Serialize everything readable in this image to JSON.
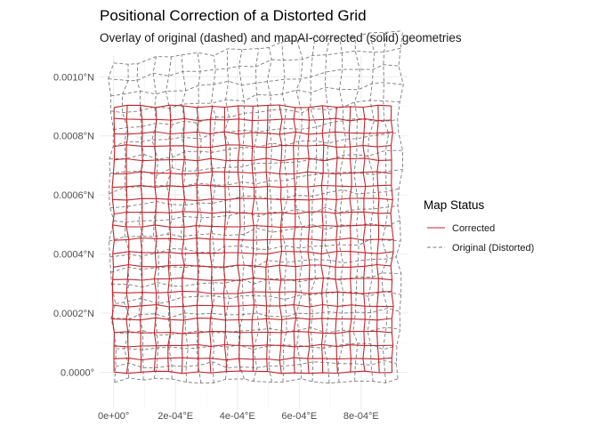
{
  "chart_data": {
    "type": "line",
    "title": "Positional Correction of a Distorted Grid",
    "subtitle": "Overlay of original (dashed) and mapAI-corrected (solid) geometries",
    "x_ticks": [
      {
        "value": 0,
        "label": "0e+00°"
      },
      {
        "value": 0.0002,
        "label": "2e-04°E"
      },
      {
        "value": 0.0004,
        "label": "4e-04°E"
      },
      {
        "value": 0.0006,
        "label": "6e-04°E"
      },
      {
        "value": 0.0008,
        "label": "8e-04°E"
      }
    ],
    "y_ticks": [
      {
        "value": 0,
        "label": "0.0000°"
      },
      {
        "value": 0.0002,
        "label": "0.0002°N"
      },
      {
        "value": 0.0004,
        "label": "0.0004°N"
      },
      {
        "value": 0.0006,
        "label": "0.0006°N"
      },
      {
        "value": 0.0008,
        "label": "0.0008°N"
      },
      {
        "value": 0.001,
        "label": "0.0010°N"
      }
    ],
    "xlim": [
      -4.5e-05,
      0.00095
    ],
    "ylim": [
      -0.000125,
      0.00107
    ],
    "grid": true,
    "legend": {
      "title": "Map Status",
      "position": "right",
      "entries": [
        {
          "label": "Corrected",
          "color": "#c0262d",
          "style": "solid"
        },
        {
          "label": "Original (Distorted)",
          "color": "#7a7a7a",
          "style": "dashed"
        }
      ]
    },
    "series": [
      {
        "name": "Corrected",
        "grid_extent": {
          "x": [
            0,
            0.0009
          ],
          "y": [
            0,
            0.0009
          ]
        },
        "cells": 20
      },
      {
        "name": "Original (Distorted)",
        "grid_extent": {
          "x": [
            0,
            0.00092
          ],
          "y": [
            -3e-05,
            0.00104
          ]
        },
        "cells": 20
      }
    ]
  }
}
